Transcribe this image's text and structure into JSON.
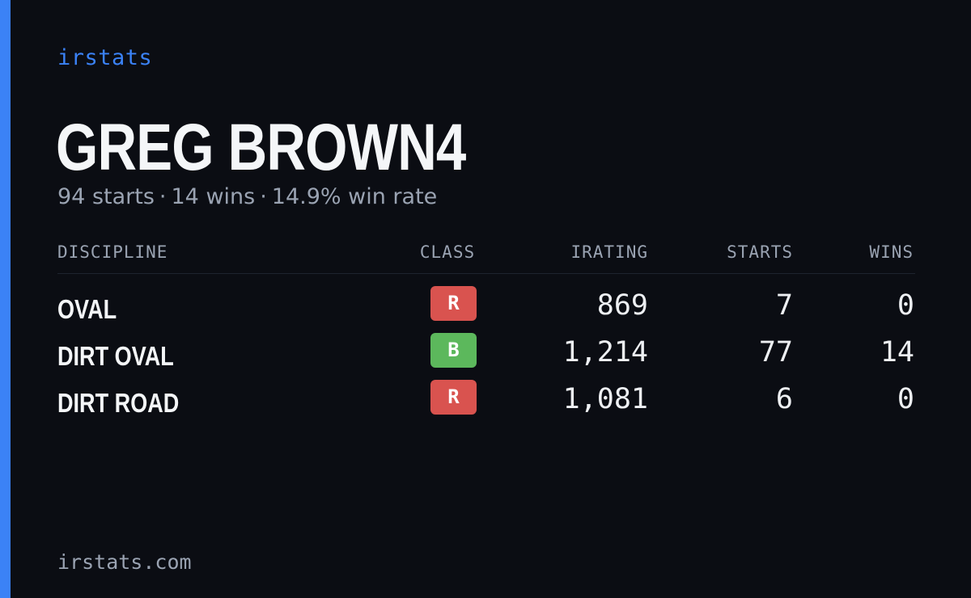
{
  "brand": "irstats",
  "player": {
    "name": "GREG BROWN4"
  },
  "summary": {
    "starts": "94 starts",
    "wins": "14 wins",
    "win_rate": "14.9% win rate",
    "separator": "·"
  },
  "table": {
    "headers": {
      "discipline": "DISCIPLINE",
      "class": "CLASS",
      "irating": "IRATING",
      "starts": "STARTS",
      "wins": "WINS"
    },
    "rows": [
      {
        "discipline": "OVAL",
        "class": "R",
        "class_color": "#d9534f",
        "irating": "869",
        "starts": "7",
        "wins": "0"
      },
      {
        "discipline": "DIRT OVAL",
        "class": "B",
        "class_color": "#5cb85c",
        "irating": "1,214",
        "starts": "77",
        "wins": "14"
      },
      {
        "discipline": "DIRT ROAD",
        "class": "R",
        "class_color": "#d9534f",
        "irating": "1,081",
        "starts": "6",
        "wins": "0"
      }
    ]
  },
  "footer": "irstats.com",
  "colors": {
    "accent": "#3b82f6",
    "background": "#0b0d13",
    "class_R": "#d9534f",
    "class_B": "#5cb85c"
  }
}
